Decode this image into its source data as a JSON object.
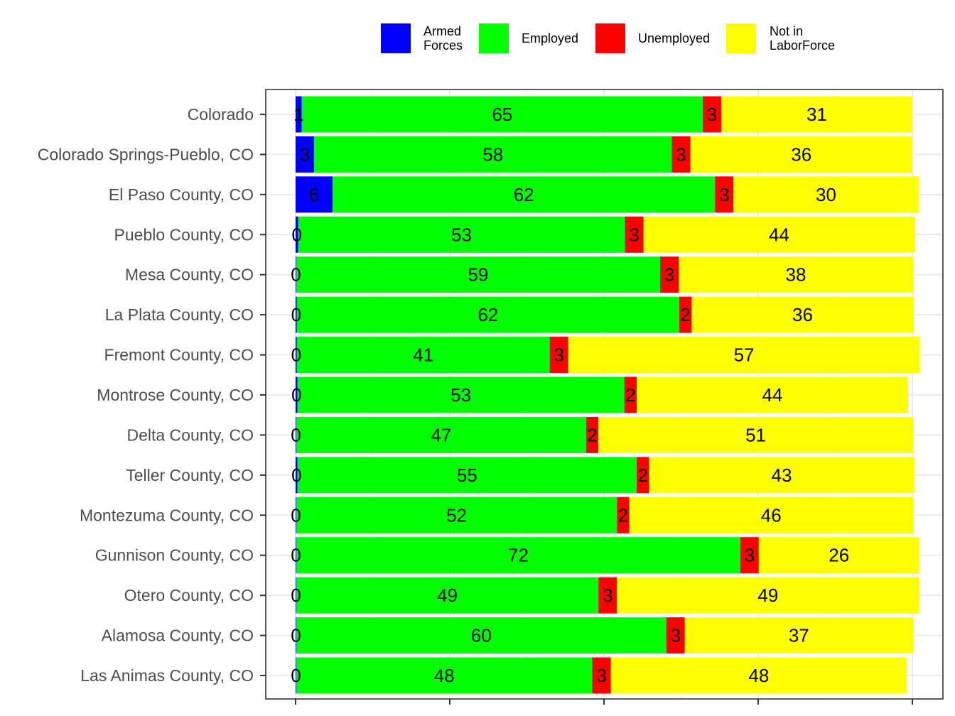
{
  "chart_data": {
    "type": "bar",
    "orientation": "horizontal",
    "stacked": true,
    "percent_stacked": true,
    "categories": [
      "Colorado",
      "Colorado Springs-Pueblo, CO",
      "El Paso County, CO",
      "Pueblo County, CO",
      "Mesa County, CO",
      "La Plata County, CO",
      "Fremont County, CO",
      "Montrose County, CO",
      "Delta County, CO",
      "Teller County, CO",
      "Montezuma County, CO",
      "Gunnison County, CO",
      "Otero County, CO",
      "Alamosa County, CO",
      "Las Animas County, CO"
    ],
    "series": [
      {
        "name": "Armed Forces",
        "legend_lines": [
          "Armed",
          "Forces"
        ],
        "color": "#0000ff",
        "values": [
          1,
          3,
          6,
          0.4,
          0.1,
          0.2,
          0.2,
          0.3,
          0.1,
          0.3,
          0.1,
          0.1,
          0.1,
          0.1,
          0.1
        ],
        "labels": [
          "1",
          "3",
          "6",
          "0",
          "0",
          "0",
          "0",
          "0",
          "0",
          "0",
          "0",
          "0",
          "0",
          "0",
          "0"
        ]
      },
      {
        "name": "Employed",
        "legend_lines": [
          "Employed"
        ],
        "color": "#00ff00",
        "values": [
          65,
          58,
          62,
          53,
          59,
          62,
          41,
          53,
          47,
          55,
          52,
          72,
          49,
          60,
          48
        ],
        "labels": [
          "65",
          "58",
          "62",
          "53",
          "59",
          "62",
          "41",
          "53",
          "47",
          "55",
          "52",
          "72",
          "49",
          "60",
          "48"
        ]
      },
      {
        "name": "Unemployed",
        "legend_lines": [
          "Unemployed"
        ],
        "color": "#ff0000",
        "values": [
          3,
          3,
          3,
          3,
          3,
          2,
          3,
          2,
          2,
          2,
          2,
          3,
          3,
          3,
          3
        ],
        "labels": [
          "3",
          "3",
          "3",
          "3",
          "3",
          "2",
          "3",
          "2",
          "2",
          "2",
          "2",
          "3",
          "3",
          "3",
          "3"
        ]
      },
      {
        "name": "Not in LaborForce",
        "legend_lines": [
          "Not in",
          "LaborForce"
        ],
        "color": "#ffff00",
        "values": [
          31,
          36,
          30,
          44,
          38,
          36,
          57,
          44,
          51,
          43,
          46,
          26,
          49,
          37,
          48
        ],
        "labels": [
          "31",
          "36",
          "30",
          "44",
          "38",
          "36",
          "57",
          "44",
          "51",
          "43",
          "46",
          "26",
          "49",
          "37",
          "48"
        ]
      }
    ],
    "xlim": [
      0,
      100
    ],
    "x_tick_labels_shown": false,
    "xlabel": "",
    "ylabel": "",
    "title": "",
    "legend_position": "top",
    "grid": true,
    "panel_border": true
  }
}
